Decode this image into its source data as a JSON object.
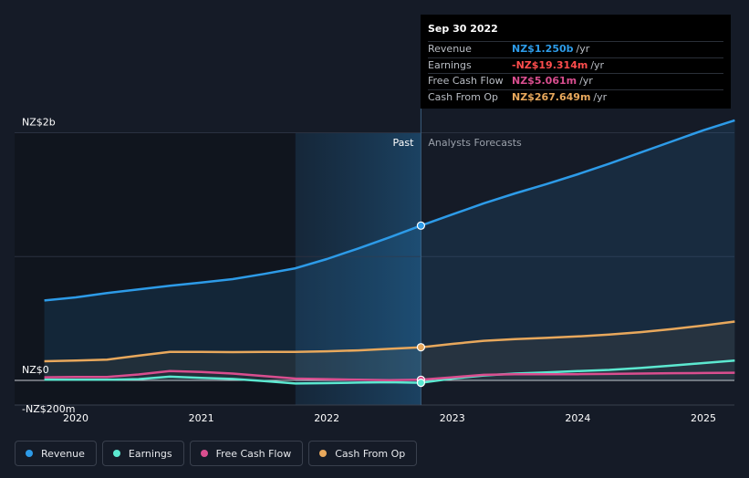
{
  "colors": {
    "revenue": "#2d9be8",
    "earnings": "#5ce8d0",
    "fcf": "#d94e8f",
    "cfo": "#e8a85c",
    "background": "#151b27"
  },
  "tooltip": {
    "date": "Sep 30 2022",
    "rows": [
      {
        "label": "Revenue",
        "value": "NZ$1.250b",
        "unit": "/yr",
        "color": "#2d9be8"
      },
      {
        "label": "Earnings",
        "value": "-NZ$19.314m",
        "unit": "/yr",
        "color": "#ff4d4d"
      },
      {
        "label": "Free Cash Flow",
        "value": "NZ$5.061m",
        "unit": "/yr",
        "color": "#d94e8f"
      },
      {
        "label": "Cash From Op",
        "value": "NZ$267.649m",
        "unit": "/yr",
        "color": "#e8a85c"
      }
    ]
  },
  "legend": [
    {
      "label": "Revenue",
      "color": "#2d9be8",
      "icon": "revenue-dot-icon"
    },
    {
      "label": "Earnings",
      "color": "#5ce8d0",
      "icon": "earnings-dot-icon"
    },
    {
      "label": "Free Cash Flow",
      "color": "#d94e8f",
      "icon": "fcf-dot-icon"
    },
    {
      "label": "Cash From Op",
      "color": "#e8a85c",
      "icon": "cfo-dot-icon"
    }
  ],
  "chart_data": {
    "type": "line",
    "title": "",
    "xlabel": "",
    "ylabel": "",
    "y_labels": [
      {
        "text": "NZ$2b",
        "value": 2000
      },
      {
        "text": "NZ$0",
        "value": 0
      },
      {
        "text": "-NZ$200m",
        "value": -200
      }
    ],
    "x_ticks": [
      {
        "text": "2020",
        "value": 2020.0
      },
      {
        "text": "2021",
        "value": 2021.0
      },
      {
        "text": "2022",
        "value": 2022.0
      },
      {
        "text": "2023",
        "value": 2023.0
      },
      {
        "text": "2024",
        "value": 2024.0
      },
      {
        "text": "2025",
        "value": 2025.0
      }
    ],
    "xlim": [
      2019.5,
      2025.25
    ],
    "ylim": [
      -200,
      2000
    ],
    "unit": "NZ$ millions",
    "past_label": "Past",
    "forecast_label": "Analysts Forecasts",
    "highlight_start": 2021.75,
    "divider_x": 2022.75,
    "grid": "horizontal",
    "series": [
      {
        "name": "Revenue",
        "key": "revenue",
        "color": "#2d9be8",
        "points": [
          [
            2019.75,
            645
          ],
          [
            2020.0,
            670
          ],
          [
            2020.25,
            705
          ],
          [
            2020.5,
            735
          ],
          [
            2020.75,
            765
          ],
          [
            2021.0,
            790
          ],
          [
            2021.25,
            818
          ],
          [
            2021.5,
            860
          ],
          [
            2021.75,
            905
          ],
          [
            2022.0,
            980
          ],
          [
            2022.25,
            1065
          ],
          [
            2022.5,
            1155
          ],
          [
            2022.75,
            1250
          ],
          [
            2023.0,
            1340
          ],
          [
            2023.25,
            1430
          ],
          [
            2023.5,
            1510
          ],
          [
            2023.75,
            1585
          ],
          [
            2024.0,
            1665
          ],
          [
            2024.25,
            1750
          ],
          [
            2024.5,
            1840
          ],
          [
            2024.75,
            1930
          ],
          [
            2025.0,
            2020
          ],
          [
            2025.25,
            2100
          ]
        ]
      },
      {
        "name": "Earnings",
        "key": "earnings",
        "color": "#5ce8d0",
        "points": [
          [
            2019.75,
            5
          ],
          [
            2020.0,
            5
          ],
          [
            2020.25,
            5
          ],
          [
            2020.5,
            10
          ],
          [
            2020.75,
            30
          ],
          [
            2021.0,
            20
          ],
          [
            2021.25,
            12
          ],
          [
            2021.5,
            -5
          ],
          [
            2021.75,
            -25
          ],
          [
            2022.0,
            -22
          ],
          [
            2022.25,
            -18
          ],
          [
            2022.5,
            -15
          ],
          [
            2022.75,
            -19.314
          ],
          [
            2023.0,
            15
          ],
          [
            2023.25,
            40
          ],
          [
            2023.5,
            55
          ],
          [
            2023.75,
            65
          ],
          [
            2024.0,
            75
          ],
          [
            2024.25,
            85
          ],
          [
            2024.5,
            100
          ],
          [
            2024.75,
            120
          ],
          [
            2025.0,
            140
          ],
          [
            2025.25,
            160
          ]
        ]
      },
      {
        "name": "Free Cash Flow",
        "key": "fcf",
        "color": "#d94e8f",
        "points": [
          [
            2019.75,
            25
          ],
          [
            2020.0,
            28
          ],
          [
            2020.25,
            28
          ],
          [
            2020.5,
            48
          ],
          [
            2020.75,
            75
          ],
          [
            2021.0,
            68
          ],
          [
            2021.25,
            55
          ],
          [
            2021.5,
            35
          ],
          [
            2021.75,
            15
          ],
          [
            2022.0,
            10
          ],
          [
            2022.25,
            5
          ],
          [
            2022.5,
            2
          ],
          [
            2022.75,
            5.061
          ],
          [
            2023.0,
            25
          ],
          [
            2023.25,
            45
          ],
          [
            2023.5,
            50
          ],
          [
            2023.75,
            50
          ],
          [
            2024.0,
            50
          ],
          [
            2024.25,
            52
          ],
          [
            2024.5,
            55
          ],
          [
            2024.75,
            58
          ],
          [
            2025.0,
            60
          ],
          [
            2025.25,
            62
          ]
        ]
      },
      {
        "name": "Cash From Op",
        "key": "cfo",
        "color": "#e8a85c",
        "points": [
          [
            2019.75,
            155
          ],
          [
            2020.0,
            160
          ],
          [
            2020.25,
            168
          ],
          [
            2020.5,
            200
          ],
          [
            2020.75,
            230
          ],
          [
            2021.0,
            230
          ],
          [
            2021.25,
            228
          ],
          [
            2021.5,
            230
          ],
          [
            2021.75,
            230
          ],
          [
            2022.0,
            235
          ],
          [
            2022.25,
            242
          ],
          [
            2022.5,
            255
          ],
          [
            2022.75,
            267.649
          ],
          [
            2023.0,
            295
          ],
          [
            2023.25,
            320
          ],
          [
            2023.5,
            333
          ],
          [
            2023.75,
            343
          ],
          [
            2024.0,
            355
          ],
          [
            2024.25,
            370
          ],
          [
            2024.5,
            390
          ],
          [
            2024.75,
            415
          ],
          [
            2025.0,
            443
          ],
          [
            2025.25,
            475
          ]
        ]
      }
    ]
  }
}
